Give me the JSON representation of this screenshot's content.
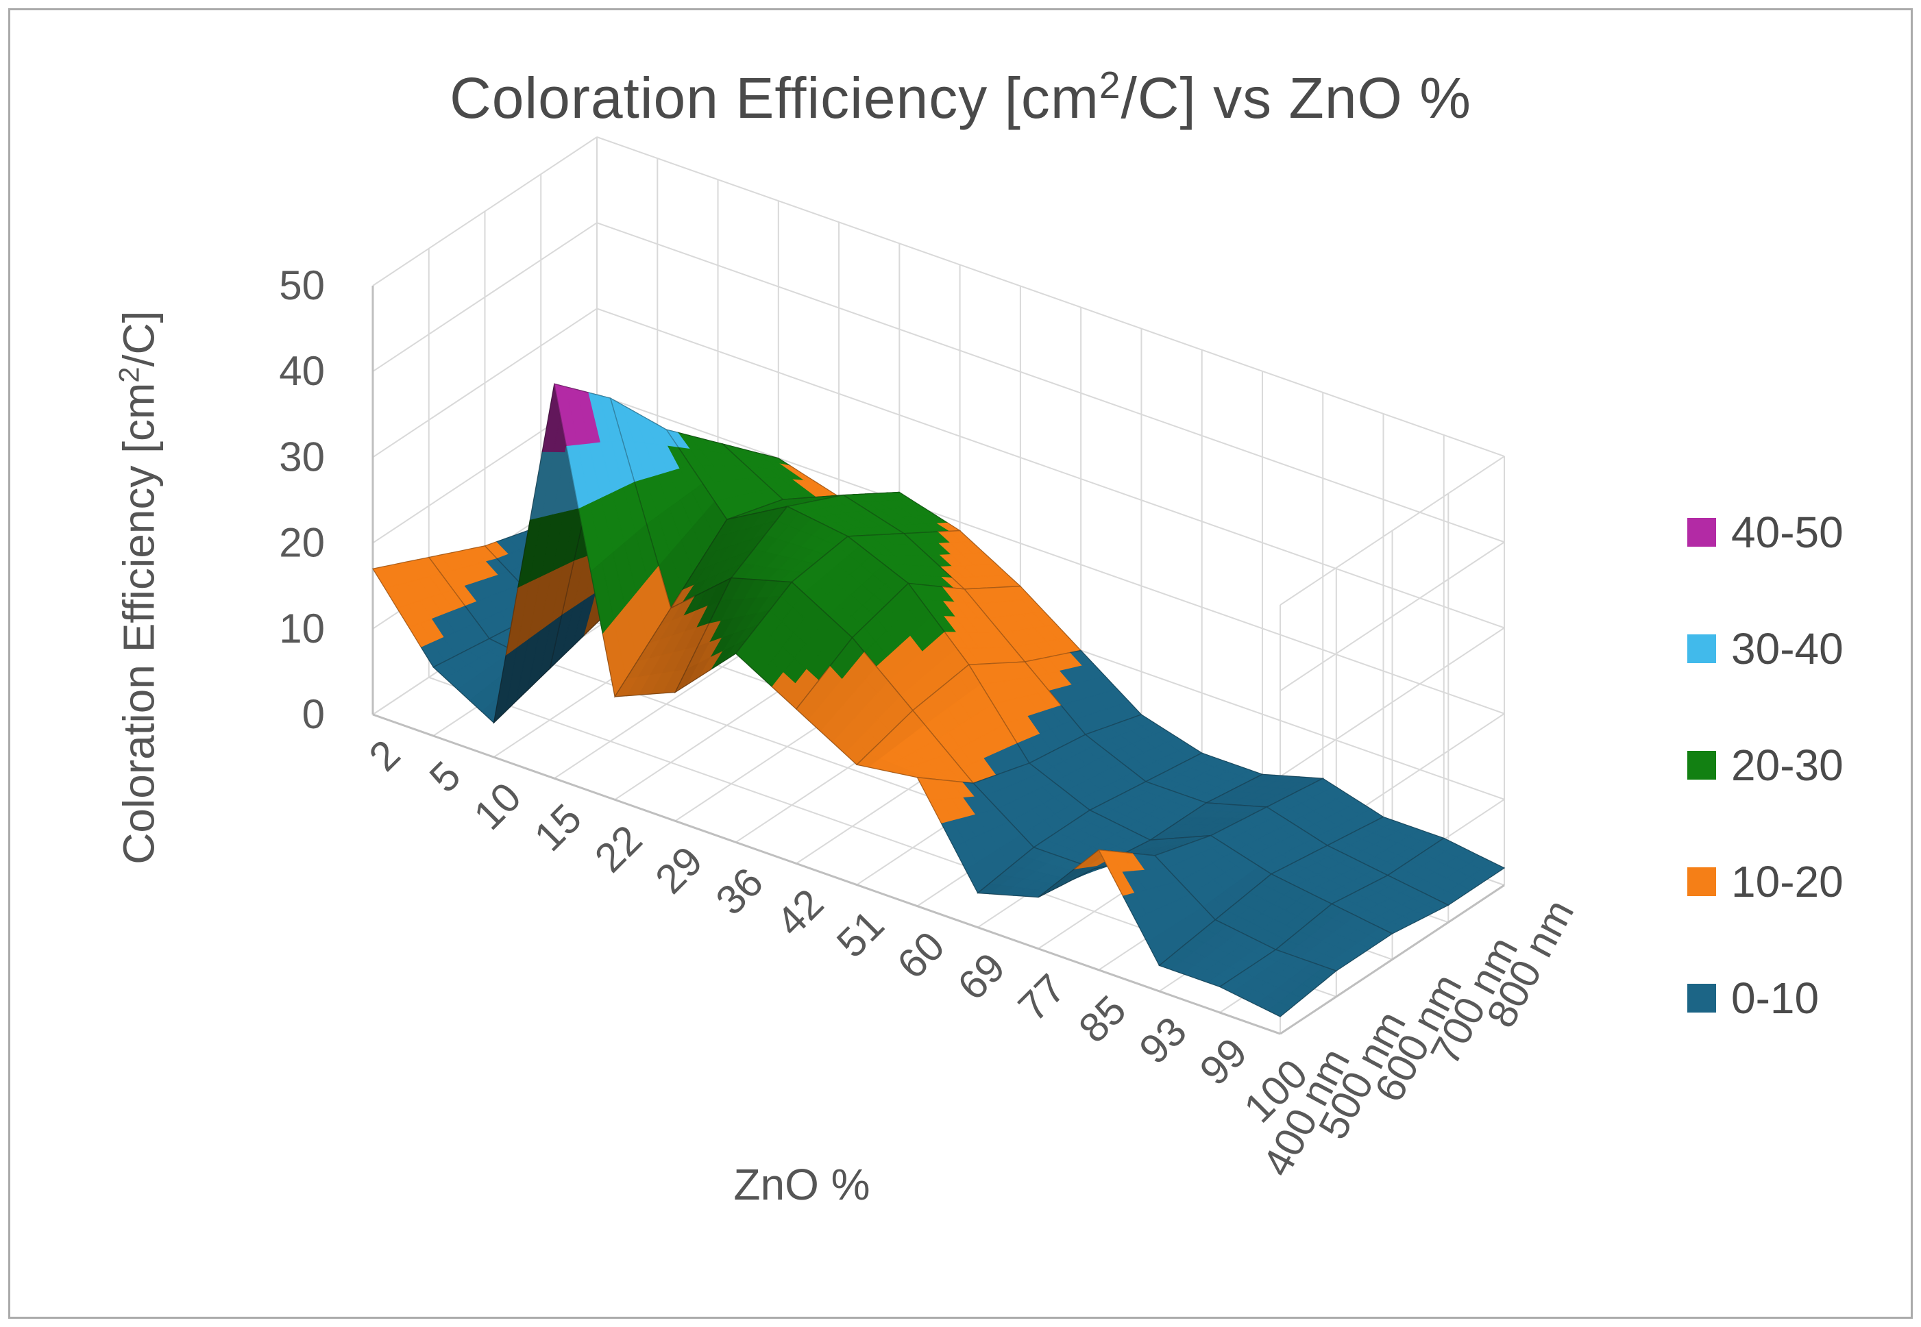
{
  "title": {
    "pre": "Coloration Efficiency [cm",
    "sup": "2",
    "post": "/C] vs ZnO %"
  },
  "axes": {
    "x": {
      "title": "ZnO %",
      "categories": [
        "2",
        "5",
        "10",
        "15",
        "22",
        "29",
        "36",
        "42",
        "51",
        "60",
        "69",
        "77",
        "85",
        "93",
        "99",
        "100"
      ]
    },
    "z": {
      "title_pre": "Coloration Efficiency [cm",
      "title_sup": "2",
      "title_post": "/C]",
      "ticks": [
        0,
        10,
        20,
        30,
        40,
        50
      ],
      "min": 0,
      "max": 50
    },
    "depth": {
      "labels": [
        "400 nm",
        "500 nm",
        "600 nm",
        "700 nm",
        "800 nm"
      ]
    }
  },
  "legend": {
    "items": [
      {
        "label": "40-50",
        "color": "#B32AA5"
      },
      {
        "label": "30-40",
        "color": "#41BAEB"
      },
      {
        "label": "20-30",
        "color": "#128012"
      },
      {
        "label": "10-20",
        "color": "#F57F17"
      },
      {
        "label": "0-10",
        "color": "#1C6586"
      }
    ]
  },
  "chart_data": {
    "type": "surface",
    "title": "Coloration Efficiency [cm2/C] vs ZnO %",
    "xlabel": "ZnO %",
    "zlabel": "Coloration Efficiency [cm2/C]",
    "categories": [
      2,
      5,
      10,
      15,
      22,
      29,
      36,
      42,
      51,
      60,
      69,
      77,
      85,
      93,
      99,
      100
    ],
    "series": [
      {
        "name": "400 nm",
        "values": [
          17,
          8,
          4,
          46,
          12,
          15,
          22,
          18,
          14,
          15,
          4,
          6,
          14,
          3,
          3,
          2
        ]
      },
      {
        "name": "500 nm",
        "values": [
          14,
          7,
          6,
          40,
          18,
          24,
          26,
          22,
          16,
          10,
          5,
          5,
          9,
          4,
          3,
          3
        ]
      },
      {
        "name": "600 nm",
        "values": [
          11,
          6,
          8,
          32,
          24,
          28,
          27,
          24,
          17,
          8,
          5,
          4,
          7,
          5,
          4,
          3
        ]
      },
      {
        "name": "700 nm",
        "values": [
          9,
          5,
          7,
          26,
          22,
          25,
          23,
          19,
          13,
          7,
          4,
          4,
          6,
          4,
          3,
          2
        ]
      },
      {
        "name": "800 nm",
        "values": [
          7,
          4,
          6,
          20,
          18,
          21,
          19,
          15,
          10,
          5,
          3,
          3,
          5,
          3,
          3,
          2
        ]
      }
    ],
    "zlim": [
      0,
      50
    ],
    "grid": true,
    "legend_position": "right",
    "bands": [
      {
        "label": "40-50",
        "min": 40,
        "max": 50,
        "color": "#B32AA5"
      },
      {
        "label": "30-40",
        "min": 30,
        "max": 40,
        "color": "#41BAEB"
      },
      {
        "label": "20-30",
        "min": 20,
        "max": 30,
        "color": "#128012"
      },
      {
        "label": "10-20",
        "min": 10,
        "max": 20,
        "color": "#F57F17"
      },
      {
        "label": "0-10",
        "min": 0,
        "max": 10,
        "color": "#1C6586"
      }
    ]
  }
}
